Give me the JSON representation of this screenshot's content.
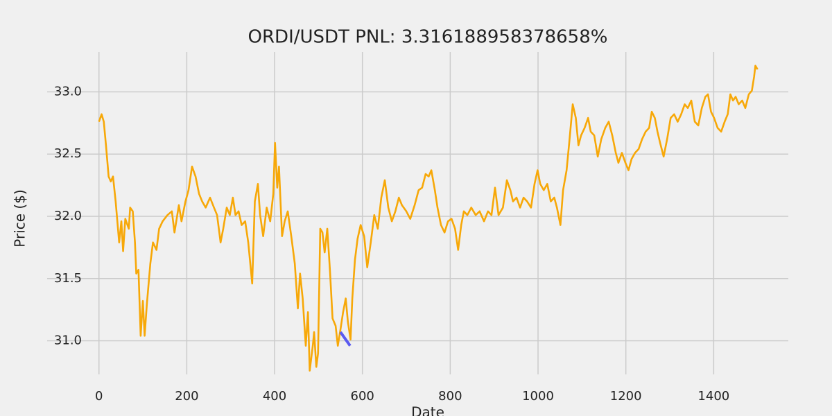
{
  "chart_data": {
    "type": "line",
    "title": "ORDI/USDT  PNL: 3.316188958378658%",
    "xlabel": "Date",
    "ylabel": "Price ($)",
    "xlim": [
      -118,
      1570
    ],
    "ylim": [
      30.73,
      33.32
    ],
    "xticks": [
      0,
      200,
      400,
      600,
      800,
      1000,
      1200,
      1400
    ],
    "yticks": [
      {
        "value": 31,
        "label": "31.0"
      },
      31.5,
      {
        "value": 32,
        "label": "32.0"
      },
      32.5,
      {
        "value": 33,
        "label": "33.0"
      }
    ],
    "grid": true,
    "series": [
      {
        "color": "#f7a808",
        "x": [
          0,
          6,
          11,
          16,
          22,
          27,
          32,
          38,
          46,
          51,
          55,
          60,
          68,
          71,
          77,
          82,
          85,
          90,
          95,
          100,
          104,
          109,
          117,
          123,
          131,
          137,
          145,
          156,
          166,
          172,
          182,
          188,
          197,
          204,
          212,
          220,
          228,
          235,
          243,
          253,
          262,
          269,
          277,
          283,
          291,
          298,
          305,
          311,
          318,
          325,
          333,
          340,
          349,
          355,
          362,
          367,
          374,
          382,
          390,
          397,
          401,
          406,
          410,
          417,
          423,
          430,
          438,
          446,
          453,
          458,
          464,
          471,
          476,
          480,
          487,
          490,
          495,
          499,
          504,
          509,
          514,
          520,
          526,
          532,
          539,
          544,
          550,
          556,
          562,
          567,
          573,
          577,
          583,
          589,
          596,
          604,
          611,
          619,
          627,
          635,
          643,
          651,
          659,
          667,
          675,
          683,
          690,
          700,
          709,
          719,
          728,
          736,
          744,
          751,
          757,
          765,
          771,
          779,
          787,
          795,
          803,
          811,
          818,
          825,
          831,
          839,
          848,
          858,
          867,
          877,
          886,
          894,
          902,
          910,
          920,
          929,
          937,
          943,
          951,
          959,
          967,
          975,
          984,
          992,
          999,
          1005,
          1013,
          1021,
          1029,
          1037,
          1043,
          1051,
          1057,
          1065,
          1071,
          1079,
          1086,
          1092,
          1098,
          1106,
          1114,
          1120,
          1128,
          1136,
          1144,
          1153,
          1161,
          1169,
          1177,
          1183,
          1191,
          1199,
          1206,
          1213,
          1221,
          1229,
          1237,
          1245,
          1253,
          1259,
          1266,
          1272,
          1278,
          1286,
          1294,
          1302,
          1310,
          1318,
          1326,
          1334,
          1341,
          1349,
          1357,
          1365,
          1373,
          1381,
          1387,
          1394,
          1401,
          1409,
          1417,
          1425,
          1432,
          1438,
          1444,
          1450,
          1457,
          1465,
          1472,
          1480,
          1487,
          1492,
          1495,
          1500
        ],
        "values": [
          32.76,
          32.82,
          32.76,
          32.57,
          32.32,
          32.28,
          32.32,
          32.12,
          31.79,
          31.96,
          31.72,
          31.98,
          31.9,
          32.07,
          32.04,
          31.79,
          31.54,
          31.57,
          31.04,
          31.32,
          31.04,
          31.29,
          31.62,
          31.79,
          31.73,
          31.9,
          31.96,
          32.01,
          32.04,
          31.87,
          32.09,
          31.96,
          32.12,
          32.21,
          32.4,
          32.32,
          32.18,
          32.12,
          32.07,
          32.15,
          32.07,
          32.01,
          31.79,
          31.9,
          32.07,
          32.01,
          32.15,
          32.01,
          32.04,
          31.93,
          31.96,
          31.79,
          31.46,
          32.12,
          32.26,
          32.01,
          31.84,
          32.07,
          31.96,
          32.18,
          32.59,
          32.23,
          32.4,
          31.84,
          31.96,
          32.04,
          31.84,
          31.62,
          31.26,
          31.54,
          31.34,
          30.96,
          31.23,
          30.76,
          30.96,
          31.07,
          30.79,
          30.9,
          31.9,
          31.87,
          31.71,
          31.9,
          31.57,
          31.18,
          31.12,
          30.96,
          31.09,
          31.23,
          31.34,
          31.15,
          31.01,
          31.34,
          31.65,
          31.82,
          31.93,
          31.84,
          31.59,
          31.79,
          32.01,
          31.9,
          32.15,
          32.29,
          32.07,
          31.96,
          32.04,
          32.15,
          32.09,
          32.04,
          31.98,
          32.09,
          32.21,
          32.23,
          32.34,
          32.32,
          32.37,
          32.21,
          32.07,
          31.93,
          31.87,
          31.96,
          31.98,
          31.9,
          31.73,
          31.93,
          32.04,
          32.01,
          32.07,
          32.01,
          32.04,
          31.96,
          32.04,
          32.01,
          32.23,
          32.01,
          32.07,
          32.29,
          32.21,
          32.12,
          32.15,
          32.07,
          32.15,
          32.12,
          32.07,
          32.26,
          32.37,
          32.26,
          32.21,
          32.26,
          32.12,
          32.15,
          32.07,
          31.93,
          32.21,
          32.37,
          32.59,
          32.9,
          32.79,
          32.57,
          32.65,
          32.71,
          32.79,
          32.68,
          32.65,
          32.48,
          32.62,
          32.71,
          32.76,
          32.65,
          32.51,
          32.43,
          32.51,
          32.43,
          32.37,
          32.46,
          32.51,
          32.54,
          32.62,
          32.68,
          32.71,
          32.84,
          32.79,
          32.68,
          32.59,
          32.48,
          32.62,
          32.79,
          32.82,
          32.76,
          32.82,
          32.9,
          32.87,
          32.93,
          32.76,
          32.73,
          32.87,
          32.96,
          32.98,
          32.84,
          32.79,
          32.71,
          32.68,
          32.76,
          32.82,
          32.98,
          32.93,
          32.96,
          32.9,
          32.93,
          32.87,
          32.98,
          33.01,
          33.12,
          33.21,
          33.18
        ]
      },
      {
        "color": "#5a5af0",
        "x": [
          550,
          572
        ],
        "values": [
          31.07,
          30.96
        ]
      }
    ]
  }
}
